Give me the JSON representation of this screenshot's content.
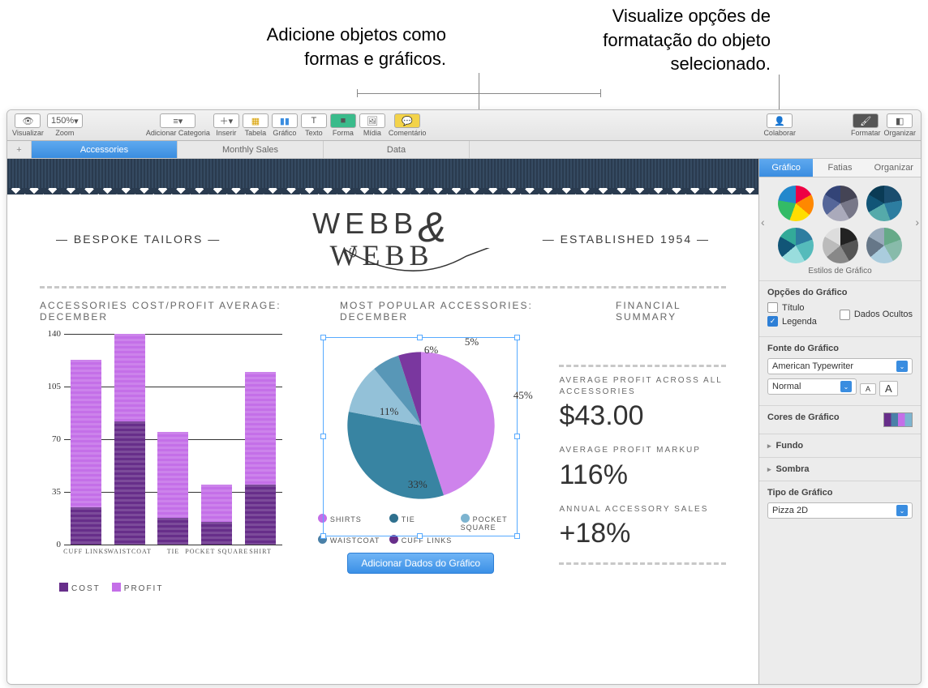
{
  "callouts": {
    "left": "Adicione objetos como\nformas e gráficos.",
    "right": "Visualize opções de\nformatação do objeto\nselecionado."
  },
  "toolbar": {
    "visualizar": "Visualizar",
    "zoom": "Zoom",
    "zoom_value": "150%",
    "categoria": "Adicionar Categoria",
    "inserir": "Inserir",
    "tabela": "Tabela",
    "grafico": "Gráfico",
    "texto": "Texto",
    "forma": "Forma",
    "midia": "Mídia",
    "comentario": "Comentário",
    "colaborar": "Colaborar",
    "formatar": "Formatar",
    "organizar": "Organizar"
  },
  "tabs": {
    "t1": "Accessories",
    "t2": "Monthly Sales",
    "t3": "Data"
  },
  "header": {
    "left": "— BESPOKE TAILORS —",
    "right": "— ESTABLISHED 1954 —",
    "logo1": "WEBB",
    "logo2": "WEBB"
  },
  "sections": {
    "a": "ACCESSORIES COST/PROFIT AVERAGE: DECEMBER",
    "b": "MOST POPULAR ACCESSORIES: DECEMBER",
    "c": "FINANCIAL SUMMARY"
  },
  "barchart": {
    "ylabels": [
      "0",
      "35",
      "70",
      "105",
      "140"
    ],
    "ymax": 140,
    "categories": [
      "CUFF LINKS",
      "WAISTCOAT",
      "TIE",
      "POCKET SQUARE",
      "SHIRT"
    ],
    "cost": [
      25,
      82,
      18,
      15,
      40
    ],
    "profit": [
      123,
      140,
      75,
      40,
      115
    ],
    "cost_color": "#672e8a",
    "profit_color": "#c46fe8",
    "legend": {
      "cost": "COST",
      "profit": "PROFIT"
    }
  },
  "pie": {
    "labels": [
      "45%",
      "33%",
      "11%",
      "6%",
      "5%"
    ],
    "values": [
      45,
      33,
      11,
      6,
      5
    ],
    "colors": [
      "#c46fe8",
      "#2f708e",
      "#7db4d0",
      "#4a80a8",
      "#672e8a"
    ],
    "legend": [
      "SHIRTS",
      "TIE",
      "POCKET SQUARE",
      "WAISTCOAT",
      "CUFF LINKS"
    ],
    "edit_btn": "Adicionar Dados do Gráfico"
  },
  "fin": {
    "l1": "AVERAGE PROFIT ACROSS ALL ACCESSORIES",
    "v1": "$43.00",
    "l2": "AVERAGE PROFIT MARKUP",
    "v2": "116%",
    "l3": "ANNUAL ACCESSORY SALES",
    "v3": "+18%"
  },
  "inspector": {
    "tabs": {
      "grafico": "Gráfico",
      "fatias": "Fatias",
      "organizar": "Organizar"
    },
    "styles_label": "Estilos de Gráfico",
    "opcoes": "Opções do Gráfico",
    "titulo": "Título",
    "legenda": "Legenda",
    "ocultos": "Dados Ocultos",
    "fonte": "Fonte do Gráfico",
    "font_family": "American Typewriter",
    "font_style": "Normal",
    "cores": "Cores de Gráfico",
    "fundo": "Fundo",
    "sombra": "Sombra",
    "tipo": "Tipo de Gráfico",
    "tipo_val": "Pizza 2D"
  }
}
